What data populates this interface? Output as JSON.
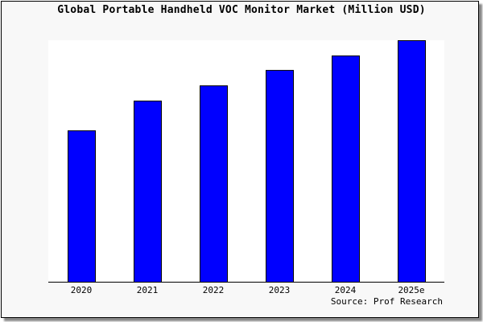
{
  "chart_data": {
    "type": "bar",
    "title": "Global Portable Handheld VOC Monitor Market (Million USD)",
    "categories": [
      "2020",
      "2021",
      "2022",
      "2023",
      "2024",
      "2025e"
    ],
    "values": [
      62.7,
      75.0,
      81.3,
      87.7,
      93.7,
      100.0
    ],
    "ylim": [
      0,
      100
    ],
    "xlabel": "",
    "ylabel": "",
    "grid": false,
    "bar_color": "#0000ff",
    "source": "Source: Prof Research"
  }
}
